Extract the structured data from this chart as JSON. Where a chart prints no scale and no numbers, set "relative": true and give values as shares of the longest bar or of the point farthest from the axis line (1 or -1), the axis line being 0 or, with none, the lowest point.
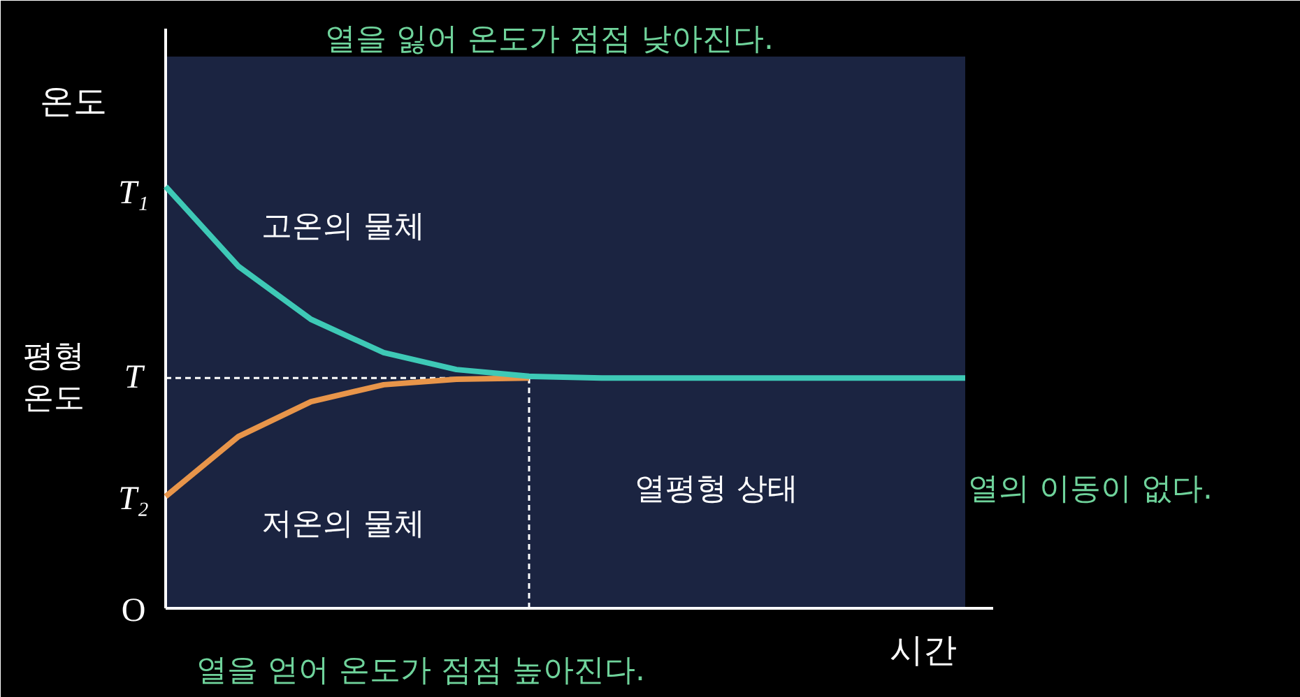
{
  "chart_data": {
    "type": "line",
    "relative": true,
    "xlabel": "시간",
    "ylabel": "온도",
    "categories": [
      null,
      null,
      null,
      null,
      null,
      null,
      null,
      null,
      null,
      null,
      null,
      null
    ],
    "series": [
      {
        "color": "#3ec9b6",
        "values": [
          1,
          0.811,
          0.685,
          0.606,
          0.566,
          0.55,
          0.546,
          0.546,
          0.546,
          0.546,
          0.546,
          0.546
        ]
      },
      {
        "color": "#e8954a",
        "values": [
          0.265,
          0.407,
          0.49,
          0.53,
          0.543,
          0.546,
          null,
          null,
          null,
          null,
          null,
          null
        ]
      }
    ],
    "ref_lines": [
      {
        "axis": "y",
        "value": 0.546,
        "color": "#ffffff",
        "line_style": "dashed"
      }
    ],
    "annotations": [
      "T₁",
      "T",
      "T₂",
      "O",
      "평형\n온도",
      "열을 잃어 온도가 점점 낮아진다.",
      "고온의 물체",
      "저온의 물체",
      "열을 얻어 온도가 점점 높아진다.",
      "열평형 상태",
      "열의 이동이 없다."
    ]
  }
}
